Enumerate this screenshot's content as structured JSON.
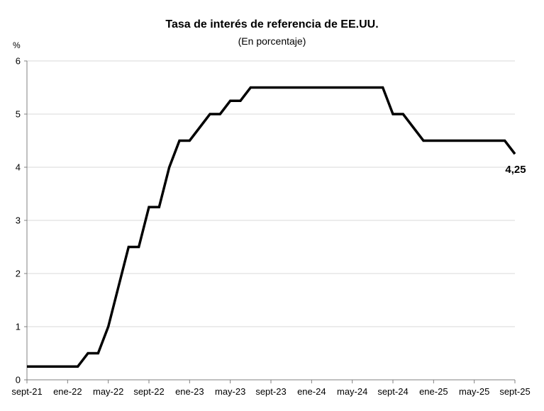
{
  "chart_data": {
    "type": "line",
    "title": "Tasa de interés de referencia de EE.UU.",
    "subtitle": "(En porcentaje)",
    "ylabel": "%",
    "xlabel": "",
    "ylim": [
      0,
      6
    ],
    "yticks": [
      "0",
      "1",
      "2",
      "3",
      "4",
      "5",
      "6"
    ],
    "xlim": [
      "2021-09",
      "2025-09"
    ],
    "xticks": [
      "sept-21",
      "ene-22",
      "may-22",
      "sept-22",
      "ene-23",
      "may-23",
      "sept-23",
      "ene-24",
      "may-24",
      "sept-24",
      "ene-25",
      "may-25",
      "sept-25"
    ],
    "grid": "horizontal",
    "series": [
      {
        "x": [
          "2021-09",
          "2021-10",
          "2021-11",
          "2021-12",
          "2022-01",
          "2022-02",
          "2022-03",
          "2022-04",
          "2022-05",
          "2022-06",
          "2022-07",
          "2022-08",
          "2022-09",
          "2022-10",
          "2022-11",
          "2022-12",
          "2023-01",
          "2023-02",
          "2023-03",
          "2023-04",
          "2023-05",
          "2023-06",
          "2023-07",
          "2023-08",
          "2023-09",
          "2023-10",
          "2023-11",
          "2023-12",
          "2024-01",
          "2024-02",
          "2024-03",
          "2024-04",
          "2024-05",
          "2024-06",
          "2024-07",
          "2024-08",
          "2024-09",
          "2024-10",
          "2024-11",
          "2024-12",
          "2025-01",
          "2025-02",
          "2025-03",
          "2025-04",
          "2025-05",
          "2025-06",
          "2025-07",
          "2025-08",
          "2025-09"
        ],
        "values": [
          0.25,
          0.25,
          0.25,
          0.25,
          0.25,
          0.25,
          0.5,
          0.5,
          1.0,
          1.75,
          2.5,
          2.5,
          3.25,
          3.25,
          4.0,
          4.5,
          4.5,
          4.75,
          5.0,
          5.0,
          5.25,
          5.25,
          5.5,
          5.5,
          5.5,
          5.5,
          5.5,
          5.5,
          5.5,
          5.5,
          5.5,
          5.5,
          5.5,
          5.5,
          5.5,
          5.5,
          5.0,
          5.0,
          4.75,
          4.5,
          4.5,
          4.5,
          4.5,
          4.5,
          4.5,
          4.5,
          4.5,
          4.5,
          4.25
        ]
      }
    ],
    "last_value_label": "4,25",
    "line_color": "#000000"
  }
}
